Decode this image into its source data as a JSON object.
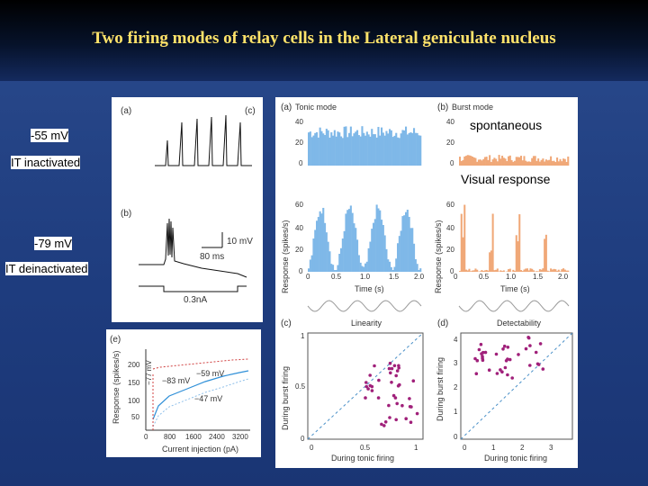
{
  "slide": {
    "title": "Two firing modes of relay cells in the Lateral geniculate nucleus",
    "left_labels": {
      "v1": "-55 mV",
      "state1": "IT inactivated",
      "v2": "-79 mV",
      "state2": "IT deinactivated"
    }
  },
  "figure_ab": {
    "a_tag": "(a)",
    "b_tag": "(b)",
    "c_tag": "(c)",
    "scale_v": "10 mV",
    "scale_t": "80 ms",
    "current": "0.3nA"
  },
  "figure_e": {
    "tag": "(e)",
    "ylabel": "Response (spikes/s)",
    "xlabel": "Current injection (pA)",
    "yticks": [
      "200",
      "150",
      "100",
      "50"
    ],
    "xticks": [
      "0",
      "800",
      "1600",
      "2400",
      "3200"
    ],
    "series_labels": [
      "−59 mV",
      "−83 mV",
      "−47 mV"
    ],
    "vlabel": "−77 mV"
  },
  "figure_right": {
    "a_tag": "(a)",
    "a_title": "Tonic mode",
    "b_tag": "(b)",
    "b_title": "Burst mode",
    "spontaneous": "spontaneous",
    "visual": "Visual response",
    "ylabel": "Response (spikes/s)",
    "time_label": "Time (s)",
    "time_ticks": [
      "0",
      "0.5",
      "1.0",
      "1.5",
      "2.0"
    ],
    "y_top_ticks_a": [
      "40",
      "20",
      "0"
    ],
    "y_bot_ticks_a": [
      "60",
      "40",
      "20",
      "0"
    ],
    "y_top_ticks_b": [
      "40",
      "20",
      "0"
    ],
    "y_bot_ticks_b": [
      "60",
      "40",
      "20",
      "0"
    ],
    "linearity": "Linearity",
    "detectability": "Detectability",
    "c_tag": "(c)",
    "d_tag": "(d)",
    "c_ylabel": "During burst firing",
    "c_xlabel": "During tonic firing",
    "c_yticks": [
      "1",
      "0.5",
      "0"
    ],
    "c_xticks": [
      "0",
      "0.5",
      "1"
    ],
    "d_ylabel": "During burst firing",
    "d_xlabel": "During tonic firing",
    "d_yticks": [
      "4",
      "3",
      "2",
      "1",
      "0"
    ],
    "d_xticks": [
      "0",
      "1",
      "2",
      "3"
    ]
  },
  "colors": {
    "tonic": "#7fb8e8",
    "burst": "#f0a878",
    "dots": "#a0207a",
    "title": "#ffe36a"
  }
}
